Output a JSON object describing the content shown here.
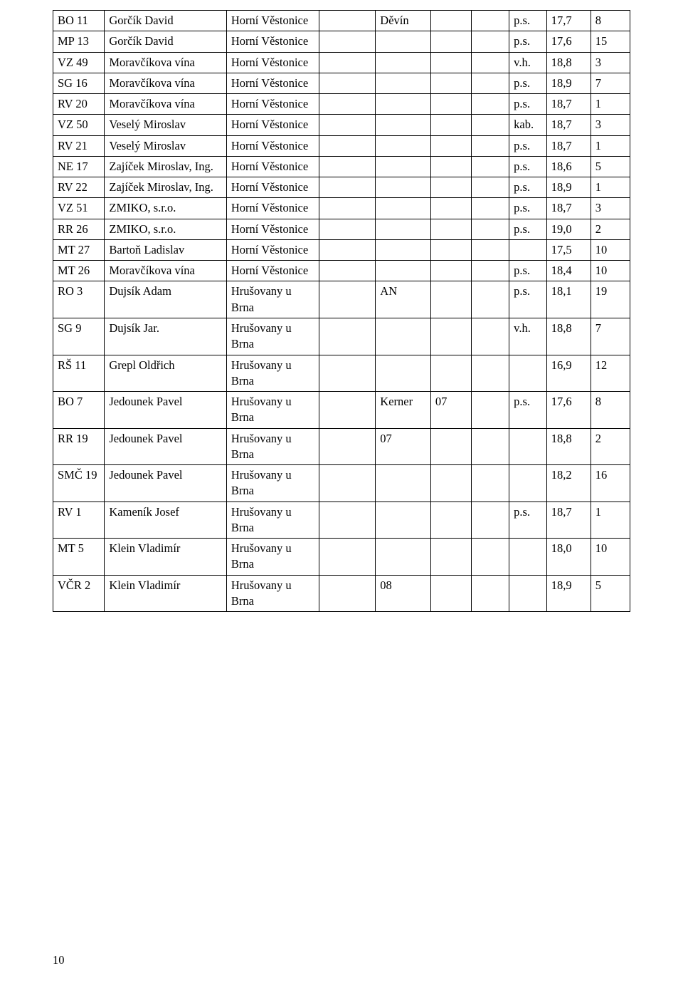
{
  "page_number": "10",
  "rows": [
    {
      "c1": "BO 11",
      "c2": "Gorčík David",
      "c3": "Horní Věstonice",
      "c4": "",
      "c5": "Děvín",
      "c6": "",
      "c7": "",
      "c8": "p.s.",
      "c9": "17,7",
      "c10": "8"
    },
    {
      "c1": "MP 13",
      "c2": "Gorčík David",
      "c3": "Horní Věstonice",
      "c4": "",
      "c5": "",
      "c6": "",
      "c7": "",
      "c8": "p.s.",
      "c9": "17,6",
      "c10": "15"
    },
    {
      "c1": "VZ 49",
      "c2": "Moravčíkova vína",
      "c3": "Horní Věstonice",
      "c4": "",
      "c5": "",
      "c6": "",
      "c7": "",
      "c8": "v.h.",
      "c9": "18,8",
      "c10": "3"
    },
    {
      "c1": "SG 16",
      "c2": "Moravčíkova vína",
      "c3": "Horní Věstonice",
      "c4": "",
      "c5": "",
      "c6": "",
      "c7": "",
      "c8": "p.s.",
      "c9": "18,9",
      "c10": "7"
    },
    {
      "c1": "RV 20",
      "c2": "Moravčíkova vína",
      "c3": "Horní Věstonice",
      "c4": "",
      "c5": "",
      "c6": "",
      "c7": "",
      "c8": "p.s.",
      "c9": "18,7",
      "c10": "1"
    },
    {
      "c1": "VZ 50",
      "c2": "Veselý Miroslav",
      "c3": "Horní Věstonice",
      "c4": "",
      "c5": "",
      "c6": "",
      "c7": "",
      "c8": "kab.",
      "c9": "18,7",
      "c10": "3"
    },
    {
      "c1": "RV 21",
      "c2": "Veselý Miroslav",
      "c3": "Horní Věstonice",
      "c4": "",
      "c5": "",
      "c6": "",
      "c7": "",
      "c8": "p.s.",
      "c9": "18,7",
      "c10": "1"
    },
    {
      "c1": "NE 17",
      "c2": "Zajíček Miroslav, Ing.",
      "c3": "Horní Věstonice",
      "c4": "",
      "c5": "",
      "c6": "",
      "c7": "",
      "c8": "p.s.",
      "c9": "18,6",
      "c10": "5"
    },
    {
      "c1": "RV 22",
      "c2": "Zajíček Miroslav, Ing.",
      "c3": "Horní Věstonice",
      "c4": "",
      "c5": "",
      "c6": "",
      "c7": "",
      "c8": "p.s.",
      "c9": "18,9",
      "c10": "1"
    },
    {
      "c1": "VZ 51",
      "c2": "ZMIKO, s.r.o.",
      "c3": "Horní Věstonice",
      "c4": "",
      "c5": "",
      "c6": "",
      "c7": "",
      "c8": "p.s.",
      "c9": "18,7",
      "c10": "3"
    },
    {
      "c1": "RR 26",
      "c2": "ZMIKO, s.r.o.",
      "c3": "Horní Věstonice",
      "c4": "",
      "c5": "",
      "c6": "",
      "c7": "",
      "c8": "p.s.",
      "c9": "19,0",
      "c10": "2"
    },
    {
      "c1": "MT 27",
      "c2": "Bartoň Ladislav",
      "c3": "Horní Věstonice",
      "c4": "",
      "c5": "",
      "c6": "",
      "c7": "",
      "c8": "",
      "c9": "17,5",
      "c10": "10"
    },
    {
      "c1": "MT 26",
      "c2": "Moravčíkova vína",
      "c3": "Horní Věstonice",
      "c4": "",
      "c5": "",
      "c6": "",
      "c7": "",
      "c8": "p.s.",
      "c9": "18,4",
      "c10": "10"
    },
    {
      "c1": "RO 3",
      "c2": "Dujsík Adam",
      "c3": "Hrušovany u Brna",
      "c4": "",
      "c5": "AN",
      "c6": "",
      "c7": "",
      "c8": "p.s.",
      "c9": "18,1",
      "c10": "19"
    },
    {
      "c1": "SG 9",
      "c2": "Dujsík Jar.",
      "c3": "Hrušovany u Brna",
      "c4": "",
      "c5": "",
      "c6": "",
      "c7": "",
      "c8": "v.h.",
      "c9": "18,8",
      "c10": "7"
    },
    {
      "c1": "RŠ 11",
      "c2": "Grepl Oldřich",
      "c3": "Hrušovany u Brna",
      "c4": "",
      "c5": "",
      "c6": "",
      "c7": "",
      "c8": "",
      "c9": "16,9",
      "c10": "12"
    },
    {
      "c1": "BO 7",
      "c2": "Jedounek Pavel",
      "c3": "Hrušovany u Brna",
      "c4": "",
      "c5": "Kerner",
      "c6": "07",
      "c7": "",
      "c8": "p.s.",
      "c9": "17,6",
      "c10": "8"
    },
    {
      "c1": "RR 19",
      "c2": "Jedounek Pavel",
      "c3": "Hrušovany u Brna",
      "c4": "",
      "c5": "07",
      "c6": "",
      "c7": "",
      "c8": "",
      "c9": "18,8",
      "c10": "2"
    },
    {
      "c1": "SMČ 19",
      "c2": "Jedounek Pavel",
      "c3": "Hrušovany u Brna",
      "c4": "",
      "c5": "",
      "c6": "",
      "c7": "",
      "c8": "",
      "c9": "18,2",
      "c10": "16"
    },
    {
      "c1": "RV 1",
      "c2": "Kameník Josef",
      "c3": "Hrušovany u Brna",
      "c4": "",
      "c5": "",
      "c6": "",
      "c7": "",
      "c8": "p.s.",
      "c9": "18,7",
      "c10": "1"
    },
    {
      "c1": "MT 5",
      "c2": "Klein Vladimír",
      "c3": "Hrušovany u Brna",
      "c4": "",
      "c5": "",
      "c6": "",
      "c7": "",
      "c8": "",
      "c9": "18,0",
      "c10": "10"
    },
    {
      "c1": "VČR 2",
      "c2": "Klein Vladimír",
      "c3": "Hrušovany u Brna",
      "c4": "",
      "c5": "08",
      "c6": "",
      "c7": "",
      "c8": "",
      "c9": "18,9",
      "c10": "5"
    }
  ]
}
